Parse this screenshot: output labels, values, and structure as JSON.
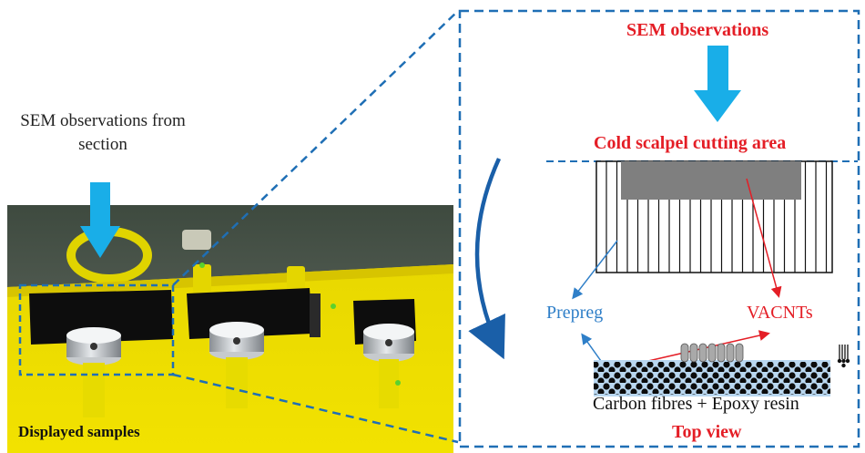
{
  "photo": {
    "caption": "Displayed samples",
    "annotation": "SEM observations from section"
  },
  "schematic": {
    "title": "SEM observations",
    "cut_label": "Cold scalpel cutting area",
    "prepreg_label": "Prepreg",
    "vacnts_label": "VACNTs",
    "layer_label": "Carbon fibres + Epoxy resin",
    "view_label": "Top view"
  },
  "colors": {
    "callout_blue": "#1f6fb5",
    "arrow_cyan": "#19aee8",
    "label_red": "#e41e26",
    "label_blue": "#2f7fc8",
    "fibre_band": "#b9d7f0"
  }
}
